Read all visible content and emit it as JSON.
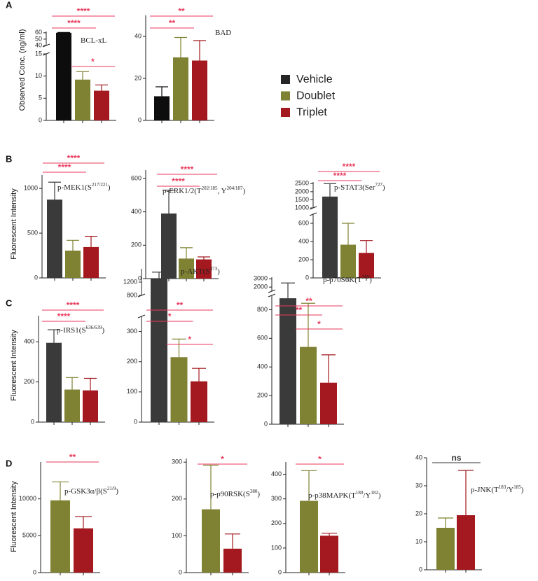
{
  "legend": {
    "series": [
      {
        "name": "Vehicle",
        "color": "#262626"
      },
      {
        "name": "Doublet",
        "color": "#7f8233"
      },
      {
        "name": "Triplet",
        "color": "#a3191f"
      }
    ]
  },
  "chart_data": [
    {
      "type": "bar",
      "panel": "A",
      "ylabel": "Observed Conc. (ng/ml)",
      "label": [
        "BCL-xL"
      ],
      "values": [
        60,
        9.2,
        6.7
      ],
      "errors": [
        0.5,
        1.8,
        1.3
      ],
      "colors": [
        "#0d0d0d",
        "#7f8233",
        "#a3191f"
      ],
      "segments": [
        {
          "ylim": [
            0,
            15
          ],
          "yticks": [
            0,
            5,
            10,
            15
          ]
        },
        {
          "ylim": [
            40,
            62
          ],
          "yticks": [
            40,
            50,
            60
          ]
        }
      ],
      "significance": [
        {
          "from": 0,
          "to": 1,
          "label": "****",
          "color": "#e8395b"
        },
        {
          "from": 0,
          "to": 2,
          "label": "****",
          "color": "#e8395b"
        },
        {
          "from": 1,
          "to": 2,
          "label": "*",
          "color": "#e8395b"
        }
      ]
    },
    {
      "type": "bar",
      "label": [
        "BAD"
      ],
      "values": [
        11.5,
        30,
        28.5
      ],
      "errors": [
        4.5,
        9.5,
        9.5
      ],
      "colors": [
        "#0d0d0d",
        "#7f8233",
        "#a3191f"
      ],
      "ylim": [
        0,
        50
      ],
      "yticks": [
        0,
        20,
        40
      ],
      "significance": [
        {
          "from": 0,
          "to": 1,
          "label": "**",
          "color": "#e8395b"
        },
        {
          "from": 0,
          "to": 2,
          "label": "**",
          "color": "#e8395b"
        }
      ]
    },
    {
      "type": "bar",
      "panel": "B",
      "ylabel": "Fluorescent Intensity",
      "label": [
        "p-MEK1(S",
        "217/221",
        ")"
      ],
      "values": [
        875,
        305,
        345
      ],
      "errors": [
        195,
        115,
        120
      ],
      "colors": [
        "#3a3a3a",
        "#7f8233",
        "#a3191f"
      ],
      "ylim": [
        0,
        1150
      ],
      "yticks": [
        0,
        500,
        1000
      ],
      "significance": [
        {
          "from": 0,
          "to": 1,
          "label": "****",
          "color": "#e8395b"
        },
        {
          "from": 0,
          "to": 2,
          "label": "****",
          "color": "#e8395b"
        }
      ]
    },
    {
      "type": "bar",
      "label": [
        "p-ERK1/2(T",
        "202/185",
        ", Y",
        "204/187",
        ")"
      ],
      "values": [
        390,
        120,
        115
      ],
      "errors": [
        140,
        65,
        15
      ],
      "colors": [
        "#3a3a3a",
        "#7f8233",
        "#a3191f"
      ],
      "ylim": [
        0,
        650
      ],
      "yticks": [
        0,
        200,
        400,
        600
      ],
      "significance": [
        {
          "from": 0,
          "to": 1,
          "label": "****",
          "color": "#e8395b"
        },
        {
          "from": 0,
          "to": 2,
          "label": "****",
          "color": "#e8395b"
        }
      ]
    },
    {
      "type": "bar",
      "label": [
        "p-STAT3(Ser",
        "727",
        ")"
      ],
      "values": [
        1700,
        365,
        275
      ],
      "errors": [
        800,
        235,
        135
      ],
      "colors": [
        "#3a3a3a",
        "#7f8233",
        "#a3191f"
      ],
      "segments": [
        {
          "ylim": [
            0,
            700
          ],
          "yticks": [
            0,
            200,
            400,
            600
          ]
        },
        {
          "ylim": [
            1000,
            2600
          ],
          "yticks": [
            1000,
            1500,
            2000,
            2500
          ]
        }
      ],
      "significance": [
        {
          "from": 0,
          "to": 1,
          "label": "****",
          "color": "#e8395b"
        },
        {
          "from": 0,
          "to": 2,
          "label": "****",
          "color": "#e8395b"
        }
      ]
    },
    {
      "type": "bar",
      "panel": "C",
      "ylabel": "Fluorescent Intensity",
      "label": [
        "p-IRS1(S",
        "636/639",
        ")"
      ],
      "values": [
        395,
        162,
        158
      ],
      "errors": [
        65,
        60,
        60
      ],
      "colors": [
        "#3a3a3a",
        "#7f8233",
        "#a3191f"
      ],
      "ylim": [
        0,
        530
      ],
      "yticks": [
        0,
        200,
        400
      ],
      "significance": [
        {
          "from": 0,
          "to": 1,
          "label": "****",
          "color": "#e8395b"
        },
        {
          "from": 0,
          "to": 2,
          "label": "****",
          "color": "#e8395b"
        }
      ]
    },
    {
      "type": "bar",
      "label": [
        "p-AKT(S",
        "473",
        ")"
      ],
      "values": [
        1300,
        215,
        135
      ],
      "errors": [
        200,
        60,
        43
      ],
      "colors": [
        "#3a3a3a",
        "#7f8233",
        "#a3191f"
      ],
      "segments": [
        {
          "ylim": [
            0,
            350
          ],
          "yticks": [
            0,
            100,
            200,
            300
          ]
        },
        {
          "ylim": [
            800,
            1600
          ],
          "yticks": [
            800,
            1200
          ]
        }
      ],
      "significance": [
        {
          "from": 0,
          "to": 1,
          "label": "*",
          "color": "#e8395b"
        },
        {
          "from": 0,
          "to": 2,
          "label": "**",
          "color": "#e8395b"
        },
        {
          "from": 1,
          "to": 2,
          "label": "*",
          "color": "#e8395b"
        }
      ]
    },
    {
      "type": "bar",
      "label": [
        "p-p70S6K(T",
        "389",
        ")"
      ],
      "values": [
        880,
        540,
        290
      ],
      "errors": [
        1620,
        305,
        195
      ],
      "colors": [
        "#3a3a3a",
        "#7f8233",
        "#a3191f"
      ],
      "segments": [
        {
          "ylim": [
            0,
            900
          ],
          "yticks": [
            0,
            200,
            400,
            600,
            800
          ]
        },
        {
          "ylim": [
            1500,
            3200
          ],
          "yticks": [
            2000,
            3000
          ]
        }
      ],
      "significance": [
        {
          "from": 0,
          "to": 2,
          "label": "**",
          "color": "#e8395b"
        },
        {
          "from": 0,
          "to": 1,
          "label": "**",
          "color": "#e8395b"
        },
        {
          "from": 1,
          "to": 2,
          "label": "*",
          "color": "#e8395b"
        }
      ]
    },
    {
      "type": "bar",
      "panel": "D",
      "ylabel": "Fluorescent Intensity",
      "label": [
        "p-GSK3α/β(S",
        "21/9",
        ")"
      ],
      "values": [
        9800,
        6000
      ],
      "errors": [
        2500,
        1600
      ],
      "colors": [
        "#7f8233",
        "#a3191f"
      ],
      "ylim": [
        0,
        15000
      ],
      "yticks": [
        0,
        5000,
        10000
      ],
      "significance": [
        {
          "from": 0,
          "to": 1,
          "label": "**",
          "color": "#e8395b"
        }
      ]
    },
    {
      "type": "bar",
      "label": [
        "p-p90RSK(S",
        "380",
        ")"
      ],
      "values": [
        172,
        65
      ],
      "errors": [
        120,
        40
      ],
      "colors": [
        "#7f8233",
        "#a3191f"
      ],
      "ylim": [
        0,
        310
      ],
      "yticks": [
        0,
        100,
        200,
        300
      ],
      "significance": [
        {
          "from": 0,
          "to": 1,
          "label": "*",
          "color": "#e8395b"
        }
      ]
    },
    {
      "type": "bar",
      "label": [
        "p-p38MAPK(T",
        "180",
        "/Y",
        "182",
        ")"
      ],
      "values": [
        292,
        150
      ],
      "errors": [
        123,
        10
      ],
      "colors": [
        "#7f8233",
        "#a3191f"
      ],
      "ylim": [
        0,
        450
      ],
      "yticks": [
        0,
        100,
        200,
        300,
        400
      ],
      "significance": [
        {
          "from": 0,
          "to": 1,
          "label": "*",
          "color": "#e8395b"
        }
      ]
    },
    {
      "type": "bar",
      "label": [
        "p-JNK(T",
        "183",
        "/Y",
        "185",
        ")"
      ],
      "values": [
        15,
        19.5
      ],
      "errors": [
        3.5,
        16
      ],
      "colors": [
        "#7f8233",
        "#a3191f"
      ],
      "ylim": [
        0,
        40
      ],
      "yticks": [
        0,
        10,
        20,
        30,
        40
      ],
      "significance": [
        {
          "from": 0,
          "to": 1,
          "label": "ns",
          "color": "#333333"
        }
      ]
    }
  ]
}
